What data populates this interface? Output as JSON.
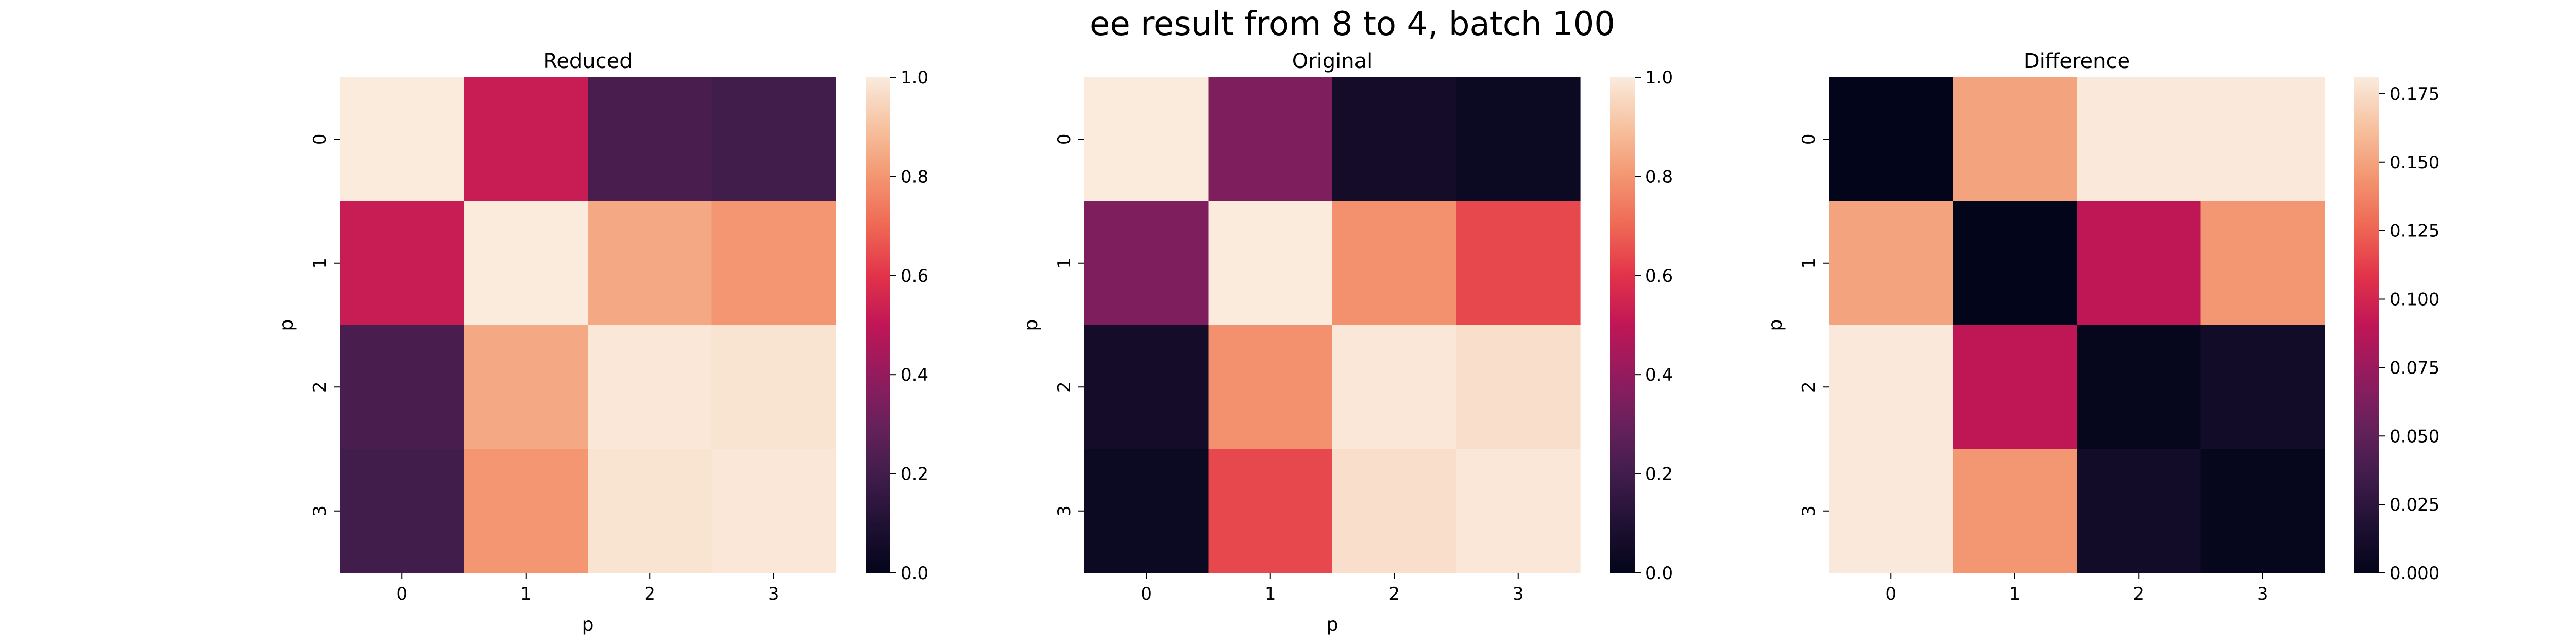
{
  "figure": {
    "suptitle": "ee result from 8 to 4, batch 100"
  },
  "chart_data": [
    {
      "type": "heatmap",
      "title": "Reduced",
      "xlabel": "p",
      "ylabel": "p",
      "x_categories": [
        "0",
        "1",
        "2",
        "3"
      ],
      "y_categories": [
        "0",
        "1",
        "2",
        "3"
      ],
      "values": [
        [
          1.0,
          0.52,
          0.22,
          0.2
        ],
        [
          0.52,
          1.0,
          0.84,
          0.8
        ],
        [
          0.22,
          0.84,
          0.99,
          0.98
        ],
        [
          0.2,
          0.8,
          0.98,
          0.99
        ]
      ],
      "vmin": 0,
      "vmax": 1.0,
      "colorbar_ticks": [
        0.0,
        0.2,
        0.4,
        0.6,
        0.8,
        1.0
      ],
      "colorbar_tick_labels": [
        "0.0",
        "0.2",
        "0.4",
        "0.6",
        "0.8",
        "1.0"
      ],
      "colormap": "rocket"
    },
    {
      "type": "heatmap",
      "title": "Original",
      "xlabel": "p",
      "ylabel": "p",
      "x_categories": [
        "0",
        "1",
        "2",
        "3"
      ],
      "y_categories": [
        "0",
        "1",
        "2",
        "3"
      ],
      "values": [
        [
          1.0,
          0.35,
          0.06,
          0.03
        ],
        [
          0.35,
          1.0,
          0.79,
          0.64
        ],
        [
          0.06,
          0.79,
          0.99,
          0.97
        ],
        [
          0.03,
          0.64,
          0.97,
          0.99
        ]
      ],
      "vmin": 0,
      "vmax": 1.0,
      "colorbar_ticks": [
        0.0,
        0.2,
        0.4,
        0.6,
        0.8,
        1.0
      ],
      "colorbar_tick_labels": [
        "0.0",
        "0.2",
        "0.4",
        "0.6",
        "0.8",
        "1.0"
      ],
      "colormap": "rocket"
    },
    {
      "type": "heatmap",
      "title": "Difference",
      "xlabel": "",
      "ylabel": "p",
      "x_categories": [
        "0",
        "1",
        "2",
        "3"
      ],
      "y_categories": [
        "0",
        "1",
        "2",
        "3"
      ],
      "values": [
        [
          0.0,
          0.15,
          0.18,
          0.18
        ],
        [
          0.15,
          0.0,
          0.09,
          0.145
        ],
        [
          0.18,
          0.09,
          0.002,
          0.01
        ],
        [
          0.18,
          0.145,
          0.01,
          0.002
        ]
      ],
      "vmin": 0,
      "vmax": 0.181,
      "colorbar_ticks": [
        0.0,
        0.025,
        0.05,
        0.075,
        0.1,
        0.125,
        0.15,
        0.175
      ],
      "colorbar_tick_labels": [
        "0.000",
        "0.025",
        "0.050",
        "0.075",
        "0.100",
        "0.125",
        "0.150",
        "0.175"
      ],
      "colormap": "rocket"
    }
  ]
}
